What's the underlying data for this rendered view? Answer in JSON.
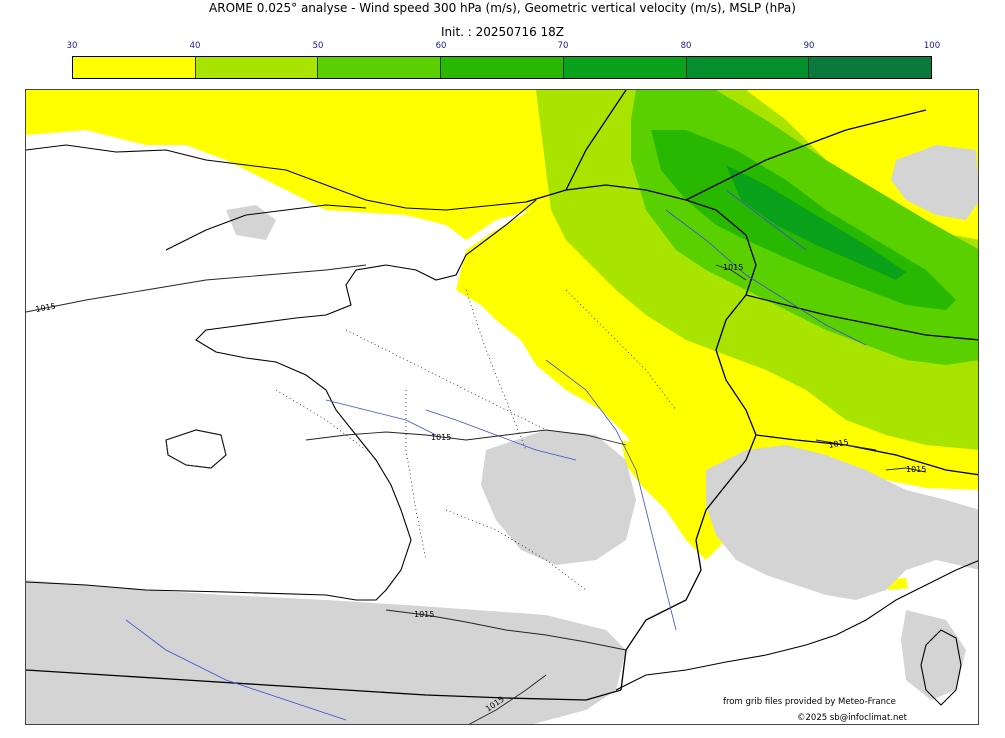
{
  "title": "AROME 0.025° analyse - Wind speed 300 hPa (m/s), Geometric vertical velocity (m/s), MSLP (hPa)",
  "init": "Init. : 20250716 18Z",
  "colorbar": {
    "ticks": [
      "30",
      "40",
      "50",
      "60",
      "70",
      "80",
      "90",
      "100"
    ],
    "colors": [
      "#ffff00",
      "#a8e400",
      "#5bd000",
      "#28b800",
      "#0aa21a",
      "#048e2c",
      "#0a7a3c"
    ]
  },
  "map": {
    "land_color": "#ffffff",
    "terrain_color": "#d4d4d4",
    "isobar_labels": [
      "1015",
      "1015",
      "1015",
      "1015",
      "1015",
      "1015",
      "1015"
    ]
  },
  "credits": {
    "source": "from grib files provided by Meteo-France",
    "copyright": "©2025 sb@infoclimat.net"
  }
}
